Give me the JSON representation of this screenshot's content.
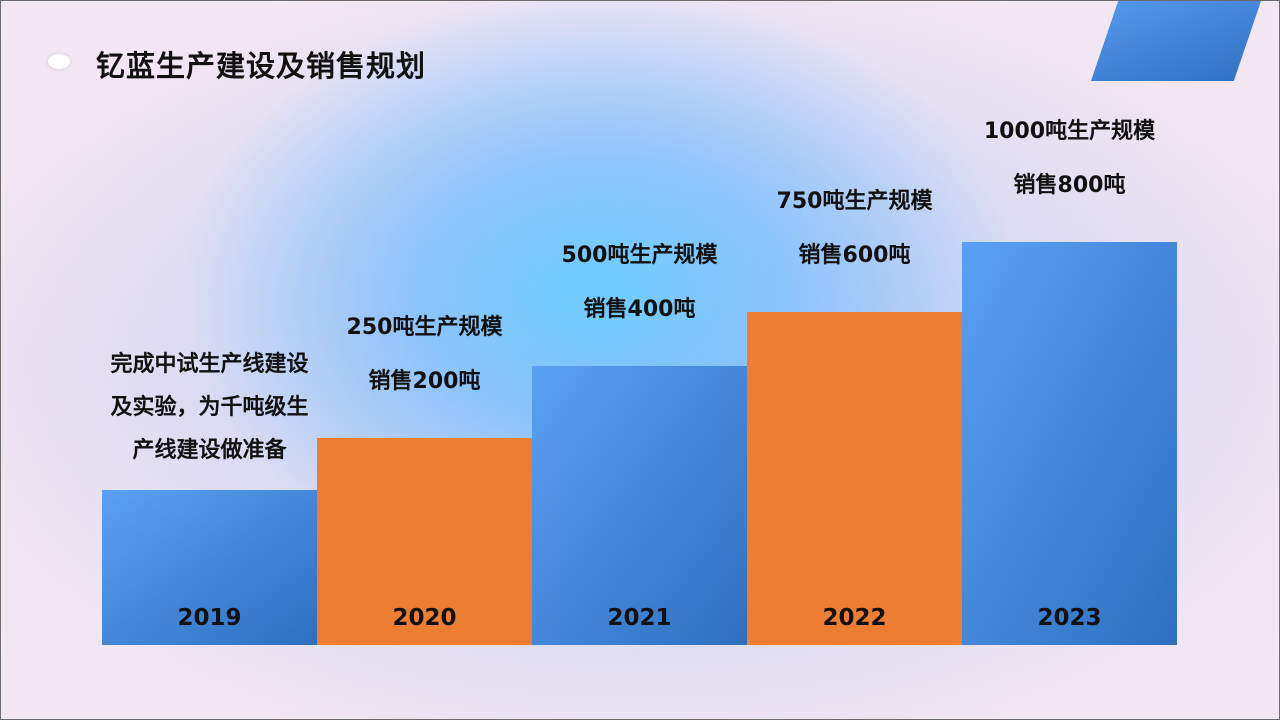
{
  "title": "钇蓝生产建设及销售规划",
  "chart_data": {
    "type": "bar",
    "categories": [
      "2019",
      "2020",
      "2021",
      "2022",
      "2023"
    ],
    "values": [
      1,
      2,
      3,
      4,
      5
    ],
    "colors": [
      "#4a8ce6",
      "#ed7d31",
      "#4a8ce6",
      "#ed7d31",
      "#4a8ce6"
    ],
    "annotations": [
      [
        "完成中试生产线建设",
        "及实验，为千吨级生",
        "产线建设做准备"
      ],
      [
        "250吨生产规模",
        "销售200吨"
      ],
      [
        "500吨生产规模",
        "销售400吨"
      ],
      [
        "750吨生产规模",
        "销售600吨"
      ],
      [
        "1000吨生产规模",
        "销售800吨"
      ]
    ]
  }
}
